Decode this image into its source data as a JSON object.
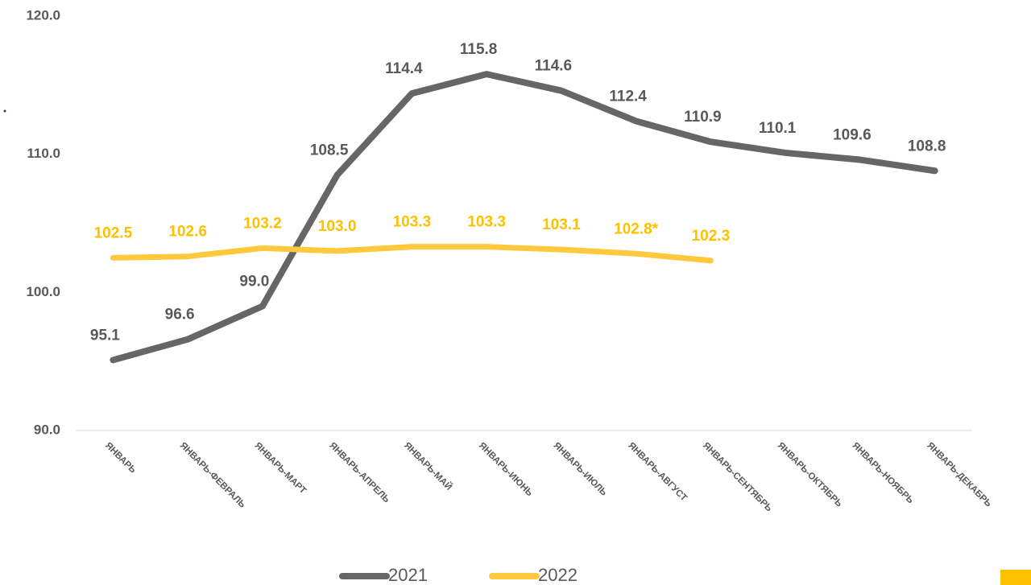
{
  "chart_data": {
    "type": "line",
    "categories": [
      "ЯНВАРЬ",
      "ЯНВАРЬ-ФЕВРАЛЬ",
      "ЯНВАРЬ-МАРТ",
      "ЯНВАРЬ-АПРЕЛЬ",
      "ЯНВАРЬ-МАЙ",
      "ЯНВАРЬ-ИЮНЬ",
      "ЯНВАРЬ-ИЮЛЬ",
      "ЯНВАРЬ-АВГУСТ",
      "ЯНВАРЬ-СЕНТЯБРЬ",
      "ЯНВАРЬ-ОКТЯБРЬ",
      "ЯНВАРЬ-НОЯБРЬ",
      "ЯНВАРЬ-ДЕКАБРЬ"
    ],
    "series": [
      {
        "name": "2021",
        "color": "#666666",
        "values": [
          95.1,
          96.6,
          99.0,
          108.5,
          114.4,
          115.8,
          114.6,
          112.4,
          110.9,
          110.1,
          109.6,
          108.8
        ],
        "value_labels": [
          "95.1",
          "96.6",
          "99.0",
          "108.5",
          "114.4",
          "115.8",
          "114.6",
          "112.4",
          "110.9",
          "110.1",
          "109.6",
          "108.8"
        ]
      },
      {
        "name": "2022",
        "color": "#ffc83d",
        "values": [
          102.5,
          102.6,
          103.2,
          103.0,
          103.3,
          103.3,
          103.1,
          102.8,
          102.3,
          null,
          null,
          null
        ],
        "value_labels": [
          "102.5",
          "102.6",
          "103.2",
          "103.0",
          "103.3",
          "103.3",
          "103.1",
          "102.8*",
          "102.3",
          null,
          null,
          null
        ]
      }
    ],
    "ylim": [
      90,
      120
    ],
    "yticks": [
      {
        "value": 90,
        "label": "90.0"
      },
      {
        "value": 100,
        "label": "100.0"
      },
      {
        "value": 110,
        "label": "110.0"
      },
      {
        "value": 120,
        "label": "120.0"
      }
    ]
  }
}
